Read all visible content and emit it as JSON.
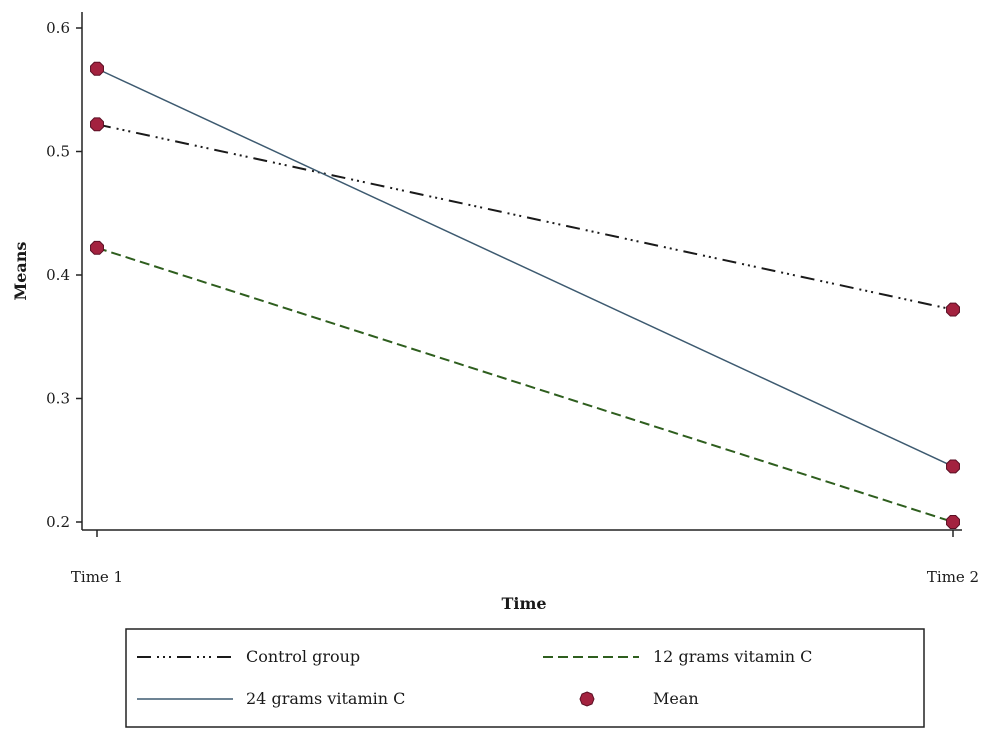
{
  "chart_data": {
    "type": "line",
    "title": "",
    "xlabel": "Time",
    "ylabel": "Means",
    "categories": [
      "Time 1",
      "Time 2"
    ],
    "ylim": [
      0.2,
      0.6
    ],
    "yticks": [
      0.2,
      0.3,
      0.4,
      0.5,
      0.6
    ],
    "ytick_labels": [
      "0.2",
      "0.3",
      "0.4",
      "0.5",
      "0.6"
    ],
    "grid": false,
    "legend_position": "bottom",
    "series": [
      {
        "name": "Control group",
        "values": [
          0.522,
          0.372
        ],
        "style": "dash-dot-dot",
        "color": "#1a1a1a"
      },
      {
        "name": "12 grams vitamin C",
        "values": [
          0.422,
          0.2
        ],
        "style": "dashed",
        "color": "#2e5e1e"
      },
      {
        "name": "24 grams vitamin C",
        "values": [
          0.567,
          0.245
        ],
        "style": "solid",
        "color": "#3d5a70"
      }
    ],
    "marker": {
      "name": "Mean",
      "color": "#a3223f",
      "stroke": "#5a0f24"
    }
  }
}
